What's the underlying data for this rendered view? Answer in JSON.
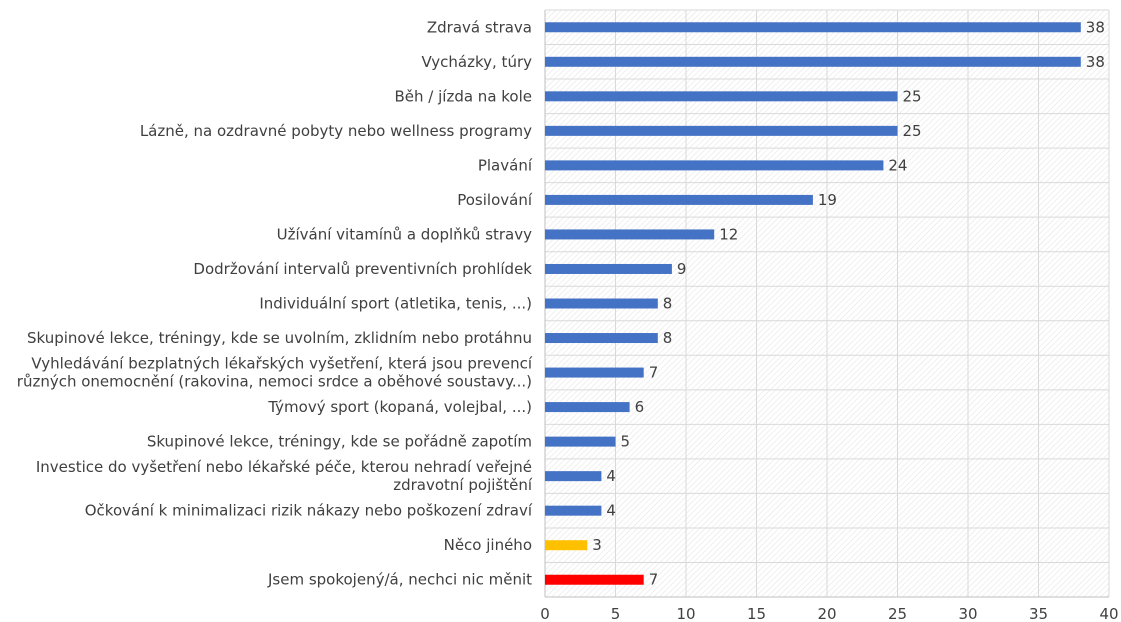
{
  "chart_data": {
    "type": "bar",
    "orientation": "horizontal",
    "title": "",
    "xlabel": "",
    "ylabel": "",
    "xlim": [
      0,
      40
    ],
    "x_ticks": [
      0,
      5,
      10,
      15,
      20,
      25,
      30,
      35,
      40
    ],
    "grid": true,
    "legend": "none",
    "categories": [
      "Zdravá strava",
      "Vycházky, túry",
      "Běh / jízda na kole",
      "Lázně, na ozdravné pobyty nebo wellness programy",
      "Plavání",
      "Posilování",
      "Užívání vitamínů a doplňků stravy",
      "Dodržování intervalů preventivních prohlídek",
      "Individuální sport (atletika, tenis, ...)",
      "Skupinové lekce, tréningy, kde se uvolním, zklidním nebo protáhnu",
      "Vyhledávání bezplatných lékařských vyšetření, která jsou prevencí různých onemocnění (rakovina, nemoci srdce a oběhové soustavy...)",
      "Týmový sport (kopaná, volejbal, ...)",
      "Skupinové lekce, tréningy, kde se pořádně zapotím",
      "Investice do vyšetření nebo lékařské péče, kterou nehradí veřejné zdravotní pojištění",
      "Očkování k minimalizaci rizik nákazy nebo poškození zdraví",
      "Něco jiného",
      "Jsem spokojený/á, nechci nic měnit"
    ],
    "label_lines": [
      [
        "Zdravá strava"
      ],
      [
        "Vycházky, túry"
      ],
      [
        "Běh / jízda na kole"
      ],
      [
        "Lázně, na ozdravné pobyty nebo wellness programy"
      ],
      [
        "Plavání"
      ],
      [
        "Posilování"
      ],
      [
        "Užívání vitamínů a doplňků stravy"
      ],
      [
        "Dodržování intervalů preventivních prohlídek"
      ],
      [
        "Individuální sport (atletika, tenis, ...)"
      ],
      [
        "Skupinové lekce, tréningy, kde se uvolním, zklidním nebo protáhnu"
      ],
      [
        "Vyhledávání bezplatných lékařských vyšetření, která jsou prevencí",
        "různých onemocnění (rakovina, nemoci srdce a oběhové soustavy...)"
      ],
      [
        "Týmový sport (kopaná, volejbal, ...)"
      ],
      [
        "Skupinové lekce, tréningy, kde se pořádně zapotím"
      ],
      [
        "Investice do vyšetření nebo lékařské péče, kterou nehradí veřejné",
        "zdravotní pojištění"
      ],
      [
        "Očkování k minimalizaci rizik nákazy nebo poškození zdraví"
      ],
      [
        "Něco jiného"
      ],
      [
        "Jsem spokojený/á, nechci nic měnit"
      ]
    ],
    "values": [
      38,
      38,
      25,
      25,
      24,
      19,
      12,
      9,
      8,
      8,
      7,
      6,
      5,
      4,
      4,
      3,
      7
    ],
    "bar_colors": [
      "#4472C4",
      "#4472C4",
      "#4472C4",
      "#4472C4",
      "#4472C4",
      "#4472C4",
      "#4472C4",
      "#4472C4",
      "#4472C4",
      "#4472C4",
      "#4472C4",
      "#4472C4",
      "#4472C4",
      "#4472C4",
      "#4472C4",
      "#FFC000",
      "#FF0000"
    ]
  }
}
